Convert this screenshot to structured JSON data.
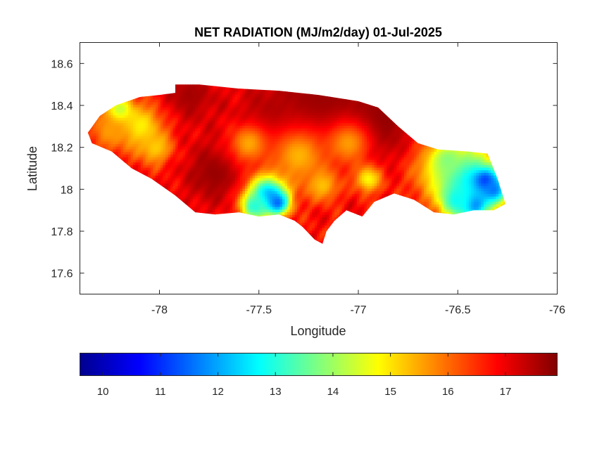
{
  "chart_data": {
    "type": "heatmap",
    "title": "NET RADIATION (MJ/m2/day) 01-Jul-2025",
    "xlabel": "Longitude",
    "ylabel": "Latitude",
    "xlim": [
      -78.4,
      -76.0
    ],
    "ylim": [
      17.5,
      18.7
    ],
    "x_ticks": [
      -78,
      -77.5,
      -77,
      -76.5,
      -76
    ],
    "y_ticks": [
      17.6,
      17.8,
      18,
      18.2,
      18.4,
      18.6
    ],
    "colormap": "jet",
    "colorbar": {
      "location": "bottom",
      "range": [
        9.6,
        17.9
      ],
      "ticks": [
        10,
        11,
        12,
        13,
        14,
        15,
        16,
        17
      ]
    },
    "grid": false,
    "region_outline": [
      [
        -78.36,
        18.27
      ],
      [
        -78.3,
        18.35
      ],
      [
        -78.22,
        18.4
      ],
      [
        -78.1,
        18.44
      ],
      [
        -78.0,
        18.45
      ],
      [
        -77.92,
        18.46
      ],
      [
        -77.92,
        18.5
      ],
      [
        -77.8,
        18.5
      ],
      [
        -77.6,
        18.48
      ],
      [
        -77.4,
        18.47
      ],
      [
        -77.2,
        18.45
      ],
      [
        -77.0,
        18.42
      ],
      [
        -76.9,
        18.39
      ],
      [
        -76.8,
        18.3
      ],
      [
        -76.7,
        18.22
      ],
      [
        -76.6,
        18.19
      ],
      [
        -76.45,
        18.18
      ],
      [
        -76.35,
        18.17
      ],
      [
        -76.3,
        18.05
      ],
      [
        -76.26,
        17.93
      ],
      [
        -76.32,
        17.9
      ],
      [
        -76.42,
        17.9
      ],
      [
        -76.52,
        17.88
      ],
      [
        -76.62,
        17.89
      ],
      [
        -76.72,
        17.95
      ],
      [
        -76.82,
        17.98
      ],
      [
        -76.92,
        17.94
      ],
      [
        -76.98,
        17.87
      ],
      [
        -77.06,
        17.9
      ],
      [
        -77.12,
        17.85
      ],
      [
        -77.16,
        17.8
      ],
      [
        -77.18,
        17.74
      ],
      [
        -77.22,
        17.76
      ],
      [
        -77.28,
        17.82
      ],
      [
        -77.32,
        17.85
      ],
      [
        -77.4,
        17.88
      ],
      [
        -77.5,
        17.87
      ],
      [
        -77.6,
        17.89
      ],
      [
        -77.72,
        17.88
      ],
      [
        -77.82,
        17.89
      ],
      [
        -77.92,
        17.97
      ],
      [
        -78.04,
        18.05
      ],
      [
        -78.14,
        18.1
      ],
      [
        -78.24,
        18.18
      ],
      [
        -78.34,
        18.22
      ]
    ],
    "field": {
      "base": 16.8,
      "features": [
        {
          "lon": -77.2,
          "lat": 18.4,
          "value": 17.7,
          "r": 0.22
        },
        {
          "lon": -76.9,
          "lat": 18.32,
          "value": 17.8,
          "r": 0.14
        },
        {
          "lon": -77.72,
          "lat": 18.08,
          "value": 17.7,
          "r": 0.12
        },
        {
          "lon": -77.85,
          "lat": 18.45,
          "value": 17.6,
          "r": 0.1
        },
        {
          "lon": -77.45,
          "lat": 18.3,
          "value": 17.6,
          "r": 0.12
        },
        {
          "lon": -78.2,
          "lat": 18.37,
          "value": 13.6,
          "r": 0.05
        },
        {
          "lon": -78.1,
          "lat": 18.3,
          "value": 14.8,
          "r": 0.08
        },
        {
          "lon": -78.25,
          "lat": 18.28,
          "value": 15.6,
          "r": 0.07
        },
        {
          "lon": -78.02,
          "lat": 18.2,
          "value": 15.2,
          "r": 0.06
        },
        {
          "lon": -77.45,
          "lat": 17.98,
          "value": 12.0,
          "r": 0.07
        },
        {
          "lon": -77.41,
          "lat": 17.94,
          "value": 11.2,
          "r": 0.04
        },
        {
          "lon": -77.52,
          "lat": 17.92,
          "value": 13.0,
          "r": 0.05
        },
        {
          "lon": -77.3,
          "lat": 18.16,
          "value": 15.4,
          "r": 0.1
        },
        {
          "lon": -77.05,
          "lat": 18.22,
          "value": 15.6,
          "r": 0.08
        },
        {
          "lon": -77.18,
          "lat": 18.02,
          "value": 15.3,
          "r": 0.06
        },
        {
          "lon": -76.95,
          "lat": 18.05,
          "value": 14.8,
          "r": 0.05
        },
        {
          "lon": -77.55,
          "lat": 18.22,
          "value": 15.5,
          "r": 0.07
        },
        {
          "lon": -76.6,
          "lat": 18.1,
          "value": 15.6,
          "r": 0.1
        },
        {
          "lon": -76.44,
          "lat": 18.05,
          "value": 12.8,
          "r": 0.12
        },
        {
          "lon": -76.36,
          "lat": 18.04,
          "value": 10.8,
          "r": 0.04
        },
        {
          "lon": -76.32,
          "lat": 18.0,
          "value": 11.6,
          "r": 0.05
        },
        {
          "lon": -76.42,
          "lat": 17.93,
          "value": 11.4,
          "r": 0.05
        },
        {
          "lon": -76.5,
          "lat": 17.95,
          "value": 12.8,
          "r": 0.06
        },
        {
          "lon": -76.55,
          "lat": 18.14,
          "value": 13.8,
          "r": 0.05
        }
      ]
    }
  }
}
